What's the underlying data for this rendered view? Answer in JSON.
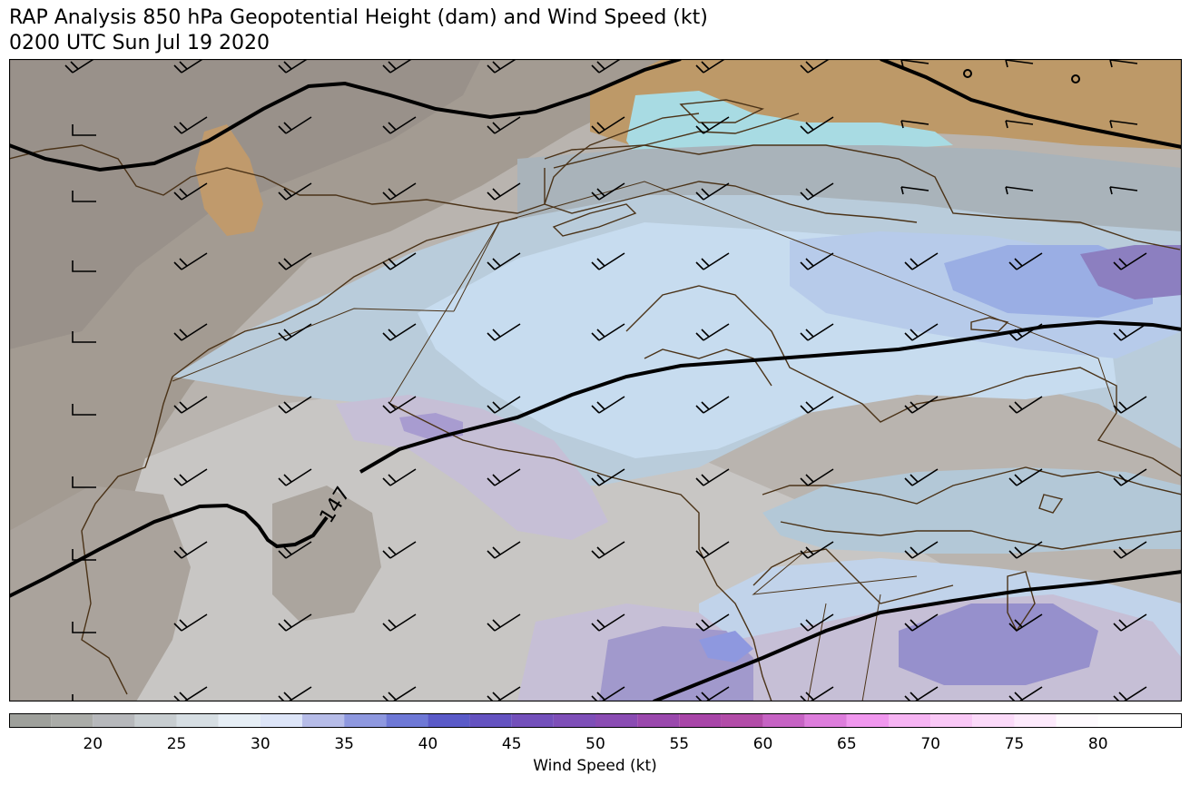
{
  "title": {
    "line1": "RAP Analysis 850 hPa Geopotential Height (dam) and Wind Speed (kt)",
    "line2": "0200 UTC Sun Jul 19 2020"
  },
  "contour_label": "147",
  "colorbar": {
    "label": "Wind Speed (kt)",
    "min": 15,
    "max": 85,
    "step": 2.5,
    "ticks": [
      20,
      25,
      30,
      35,
      40,
      45,
      50,
      55,
      60,
      65,
      70,
      75,
      80
    ],
    "colors": [
      "#9ea09b",
      "#aaaca8",
      "#b6b8bb",
      "#c7cdd0",
      "#d6dee3",
      "#e6eef5",
      "#dde5f8",
      "#b6bce8",
      "#8e98df",
      "#6e78d6",
      "#5a5ac8",
      "#6452c0",
      "#7350bb",
      "#7e4fb8",
      "#8a4cb3",
      "#9a48ad",
      "#a845a8",
      "#b24ca8",
      "#c663c4",
      "#dd7ddc",
      "#f097ee",
      "#f6b4f3",
      "#f9c8f6",
      "#fbdaf9",
      "#fdeafc",
      "#fefafe"
    ]
  },
  "map_colors": {
    "land_tan": "#bd9968",
    "gray_dark": "#9c948b",
    "gray_mid": "#b5b0ac",
    "gray_light": "#c9c7c5",
    "blue_light": "#c6daee",
    "blue_gray": "#b3c8d7",
    "cyan": "#a8dbe3",
    "blue_mid": "#9aaee4",
    "violet": "#8c7fc0",
    "lavender": "#c6bfd6",
    "coast": "#4b3318",
    "contour": "#000000"
  }
}
